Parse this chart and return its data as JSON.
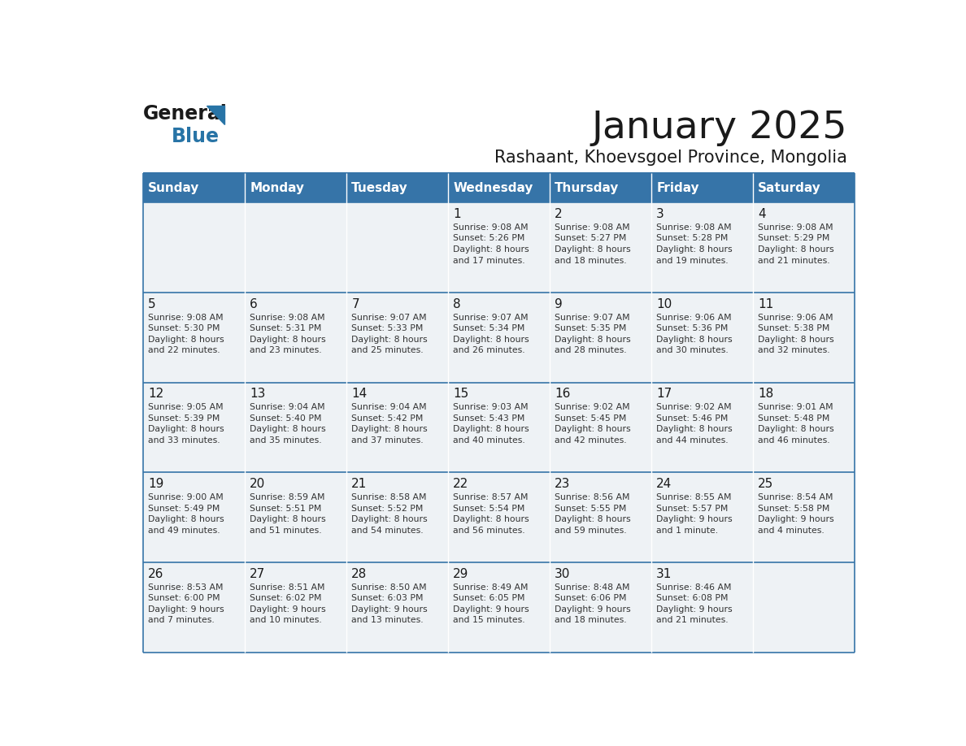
{
  "title": "January 2025",
  "subtitle": "Rashaant, Khoevsgoel Province, Mongolia",
  "days_of_week": [
    "Sunday",
    "Monday",
    "Tuesday",
    "Wednesday",
    "Thursday",
    "Friday",
    "Saturday"
  ],
  "header_bg": "#3674a8",
  "header_fg": "#ffffff",
  "cell_bg": "#eef2f5",
  "border_color": "#3674a8",
  "text_color": "#333333",
  "calendar": [
    [
      {
        "day": "",
        "info": ""
      },
      {
        "day": "",
        "info": ""
      },
      {
        "day": "",
        "info": ""
      },
      {
        "day": "1",
        "info": "Sunrise: 9:08 AM\nSunset: 5:26 PM\nDaylight: 8 hours\nand 17 minutes."
      },
      {
        "day": "2",
        "info": "Sunrise: 9:08 AM\nSunset: 5:27 PM\nDaylight: 8 hours\nand 18 minutes."
      },
      {
        "day": "3",
        "info": "Sunrise: 9:08 AM\nSunset: 5:28 PM\nDaylight: 8 hours\nand 19 minutes."
      },
      {
        "day": "4",
        "info": "Sunrise: 9:08 AM\nSunset: 5:29 PM\nDaylight: 8 hours\nand 21 minutes."
      }
    ],
    [
      {
        "day": "5",
        "info": "Sunrise: 9:08 AM\nSunset: 5:30 PM\nDaylight: 8 hours\nand 22 minutes."
      },
      {
        "day": "6",
        "info": "Sunrise: 9:08 AM\nSunset: 5:31 PM\nDaylight: 8 hours\nand 23 minutes."
      },
      {
        "day": "7",
        "info": "Sunrise: 9:07 AM\nSunset: 5:33 PM\nDaylight: 8 hours\nand 25 minutes."
      },
      {
        "day": "8",
        "info": "Sunrise: 9:07 AM\nSunset: 5:34 PM\nDaylight: 8 hours\nand 26 minutes."
      },
      {
        "day": "9",
        "info": "Sunrise: 9:07 AM\nSunset: 5:35 PM\nDaylight: 8 hours\nand 28 minutes."
      },
      {
        "day": "10",
        "info": "Sunrise: 9:06 AM\nSunset: 5:36 PM\nDaylight: 8 hours\nand 30 minutes."
      },
      {
        "day": "11",
        "info": "Sunrise: 9:06 AM\nSunset: 5:38 PM\nDaylight: 8 hours\nand 32 minutes."
      }
    ],
    [
      {
        "day": "12",
        "info": "Sunrise: 9:05 AM\nSunset: 5:39 PM\nDaylight: 8 hours\nand 33 minutes."
      },
      {
        "day": "13",
        "info": "Sunrise: 9:04 AM\nSunset: 5:40 PM\nDaylight: 8 hours\nand 35 minutes."
      },
      {
        "day": "14",
        "info": "Sunrise: 9:04 AM\nSunset: 5:42 PM\nDaylight: 8 hours\nand 37 minutes."
      },
      {
        "day": "15",
        "info": "Sunrise: 9:03 AM\nSunset: 5:43 PM\nDaylight: 8 hours\nand 40 minutes."
      },
      {
        "day": "16",
        "info": "Sunrise: 9:02 AM\nSunset: 5:45 PM\nDaylight: 8 hours\nand 42 minutes."
      },
      {
        "day": "17",
        "info": "Sunrise: 9:02 AM\nSunset: 5:46 PM\nDaylight: 8 hours\nand 44 minutes."
      },
      {
        "day": "18",
        "info": "Sunrise: 9:01 AM\nSunset: 5:48 PM\nDaylight: 8 hours\nand 46 minutes."
      }
    ],
    [
      {
        "day": "19",
        "info": "Sunrise: 9:00 AM\nSunset: 5:49 PM\nDaylight: 8 hours\nand 49 minutes."
      },
      {
        "day": "20",
        "info": "Sunrise: 8:59 AM\nSunset: 5:51 PM\nDaylight: 8 hours\nand 51 minutes."
      },
      {
        "day": "21",
        "info": "Sunrise: 8:58 AM\nSunset: 5:52 PM\nDaylight: 8 hours\nand 54 minutes."
      },
      {
        "day": "22",
        "info": "Sunrise: 8:57 AM\nSunset: 5:54 PM\nDaylight: 8 hours\nand 56 minutes."
      },
      {
        "day": "23",
        "info": "Sunrise: 8:56 AM\nSunset: 5:55 PM\nDaylight: 8 hours\nand 59 minutes."
      },
      {
        "day": "24",
        "info": "Sunrise: 8:55 AM\nSunset: 5:57 PM\nDaylight: 9 hours\nand 1 minute."
      },
      {
        "day": "25",
        "info": "Sunrise: 8:54 AM\nSunset: 5:58 PM\nDaylight: 9 hours\nand 4 minutes."
      }
    ],
    [
      {
        "day": "26",
        "info": "Sunrise: 8:53 AM\nSunset: 6:00 PM\nDaylight: 9 hours\nand 7 minutes."
      },
      {
        "day": "27",
        "info": "Sunrise: 8:51 AM\nSunset: 6:02 PM\nDaylight: 9 hours\nand 10 minutes."
      },
      {
        "day": "28",
        "info": "Sunrise: 8:50 AM\nSunset: 6:03 PM\nDaylight: 9 hours\nand 13 minutes."
      },
      {
        "day": "29",
        "info": "Sunrise: 8:49 AM\nSunset: 6:05 PM\nDaylight: 9 hours\nand 15 minutes."
      },
      {
        "day": "30",
        "info": "Sunrise: 8:48 AM\nSunset: 6:06 PM\nDaylight: 9 hours\nand 18 minutes."
      },
      {
        "day": "31",
        "info": "Sunrise: 8:46 AM\nSunset: 6:08 PM\nDaylight: 9 hours\nand 21 minutes."
      },
      {
        "day": "",
        "info": ""
      }
    ]
  ]
}
